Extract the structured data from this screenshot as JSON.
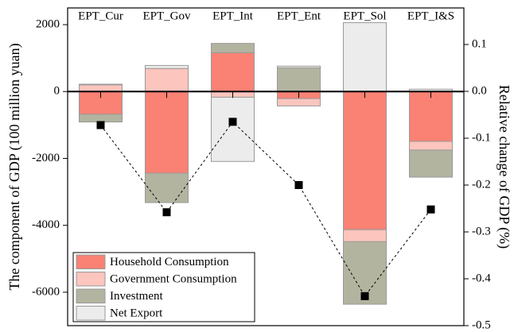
{
  "chart_data": {
    "type": "bar",
    "stacked": true,
    "categories": [
      "EPT_Cur",
      "EPT_Gov",
      "EPT_Int",
      "EPT_Ent",
      "EPT_Sol",
      "EPT_I&S"
    ],
    "y_label": "The component of GDP (100 million yuan)",
    "y2_label": "Relative change of GDP (%)",
    "ylim": [
      -7000,
      2500
    ],
    "yticks": [
      2000,
      0,
      -2000,
      -4000,
      -6000
    ],
    "y2lim": [
      -0.5,
      0.178
    ],
    "y2ticks": [
      0.1,
      {
        "value": 0,
        "label": "0.0"
      },
      -0.1,
      -0.2,
      -0.3,
      -0.4,
      -0.5
    ],
    "legend": "lower left",
    "series": [
      {
        "name": "Household Consumption",
        "color": "#f98274",
        "values": [
          -680,
          -2440,
          1160,
          -210,
          -4130,
          -1490
        ]
      },
      {
        "name": "Government Consumption",
        "color": "#fcc5bd",
        "values": [
          200,
          690,
          -170,
          -220,
          -360,
          -260
        ]
      },
      {
        "name": "Investment",
        "color": "#b3b4a0",
        "values": [
          -230,
          -880,
          280,
          710,
          -1870,
          -810
        ]
      },
      {
        "name": "Net Export",
        "color": "#ececec",
        "values": [
          20,
          90,
          -1920,
          50,
          2060,
          70
        ]
      },
      {
        "type": "line",
        "axis": "y2",
        "color": "#000000",
        "values": [
          -0.072,
          -0.258,
          -0.065,
          -0.2,
          -0.437,
          -0.252
        ]
      }
    ]
  }
}
